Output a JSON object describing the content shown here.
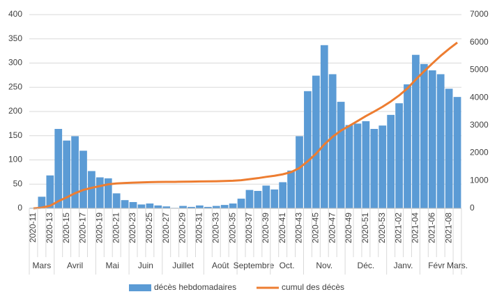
{
  "chart_data": {
    "type": "bar",
    "categories": [
      "2020-11",
      null,
      "2020-13",
      null,
      "2020-15",
      null,
      "2020-17",
      null,
      "2020-19",
      null,
      "2020-21",
      null,
      "2020-23",
      null,
      "2020-25",
      null,
      "2020-27",
      null,
      "2020-29",
      null,
      "2020-31",
      null,
      "2020-33",
      null,
      "2020-35",
      null,
      "2020-37",
      null,
      "2020-39",
      null,
      "2020-41",
      null,
      "2020-43",
      null,
      "2020-45",
      null,
      "2020-47",
      null,
      "2020-49",
      null,
      "2020-51",
      null,
      "2020-53",
      null,
      "2021-02",
      null,
      "2021-04",
      null,
      "2021-06",
      null,
      "2021-08",
      null
    ],
    "months": [
      {
        "label": "Mars",
        "weeks": 3
      },
      {
        "label": "Avril",
        "weeks": 5
      },
      {
        "label": "Mai",
        "weeks": 4
      },
      {
        "label": "Juin",
        "weeks": 4
      },
      {
        "label": "Juillet",
        "weeks": 5
      },
      {
        "label": "Août",
        "weeks": 4
      },
      {
        "label": "Septembre",
        "weeks": 4
      },
      {
        "label": "Oct.",
        "weeks": 4
      },
      {
        "label": "Nov.",
        "weeks": 5
      },
      {
        "label": "Déc.",
        "weeks": 5
      },
      {
        "label": "Janv.",
        "weeks": 4
      },
      {
        "label": "Févr",
        "weeks": 4
      },
      {
        "label": "Mars.",
        "weeks": 1
      }
    ],
    "series": [
      {
        "name": "décès hebdomadaires",
        "type": "bar",
        "color": "#5b9bd5",
        "values": [
          1,
          24,
          68,
          164,
          140,
          149,
          119,
          77,
          64,
          62,
          31,
          17,
          13,
          8,
          10,
          6,
          4,
          1,
          5,
          3,
          6,
          3,
          5,
          7,
          10,
          20,
          38,
          36,
          47,
          39,
          54,
          78,
          149,
          242,
          274,
          337,
          277,
          220,
          172,
          175,
          180,
          164,
          171,
          193,
          217,
          256,
          317,
          298,
          285,
          277,
          247,
          230
        ]
      },
      {
        "name": "cumul des décès",
        "type": "line",
        "axis": "y2",
        "color": "#ed7d31",
        "values": [
          1,
          25,
          93,
          257,
          397,
          546,
          665,
          742,
          806,
          868,
          899,
          916,
          929,
          937,
          947,
          953,
          957,
          958,
          963,
          966,
          972,
          975,
          980,
          987,
          997,
          1017,
          1055,
          1091,
          1138,
          1177,
          1231,
          1309,
          1458,
          1700,
          1974,
          2311,
          2588,
          2808,
          2980,
          3155,
          3335,
          3499,
          3670,
          3863,
          4080,
          4336,
          4653,
          4951,
          5236,
          5513,
          5760,
          5990
        ]
      }
    ],
    "ylim": [
      0,
      400
    ],
    "yticks": [
      0,
      50,
      100,
      150,
      200,
      250,
      300,
      350,
      400
    ],
    "y2lim": [
      0,
      7000
    ],
    "y2ticks": [
      0,
      1000,
      2000,
      3000,
      4000,
      5000,
      6000,
      7000
    ],
    "grid": true,
    "legend": "bottom"
  }
}
